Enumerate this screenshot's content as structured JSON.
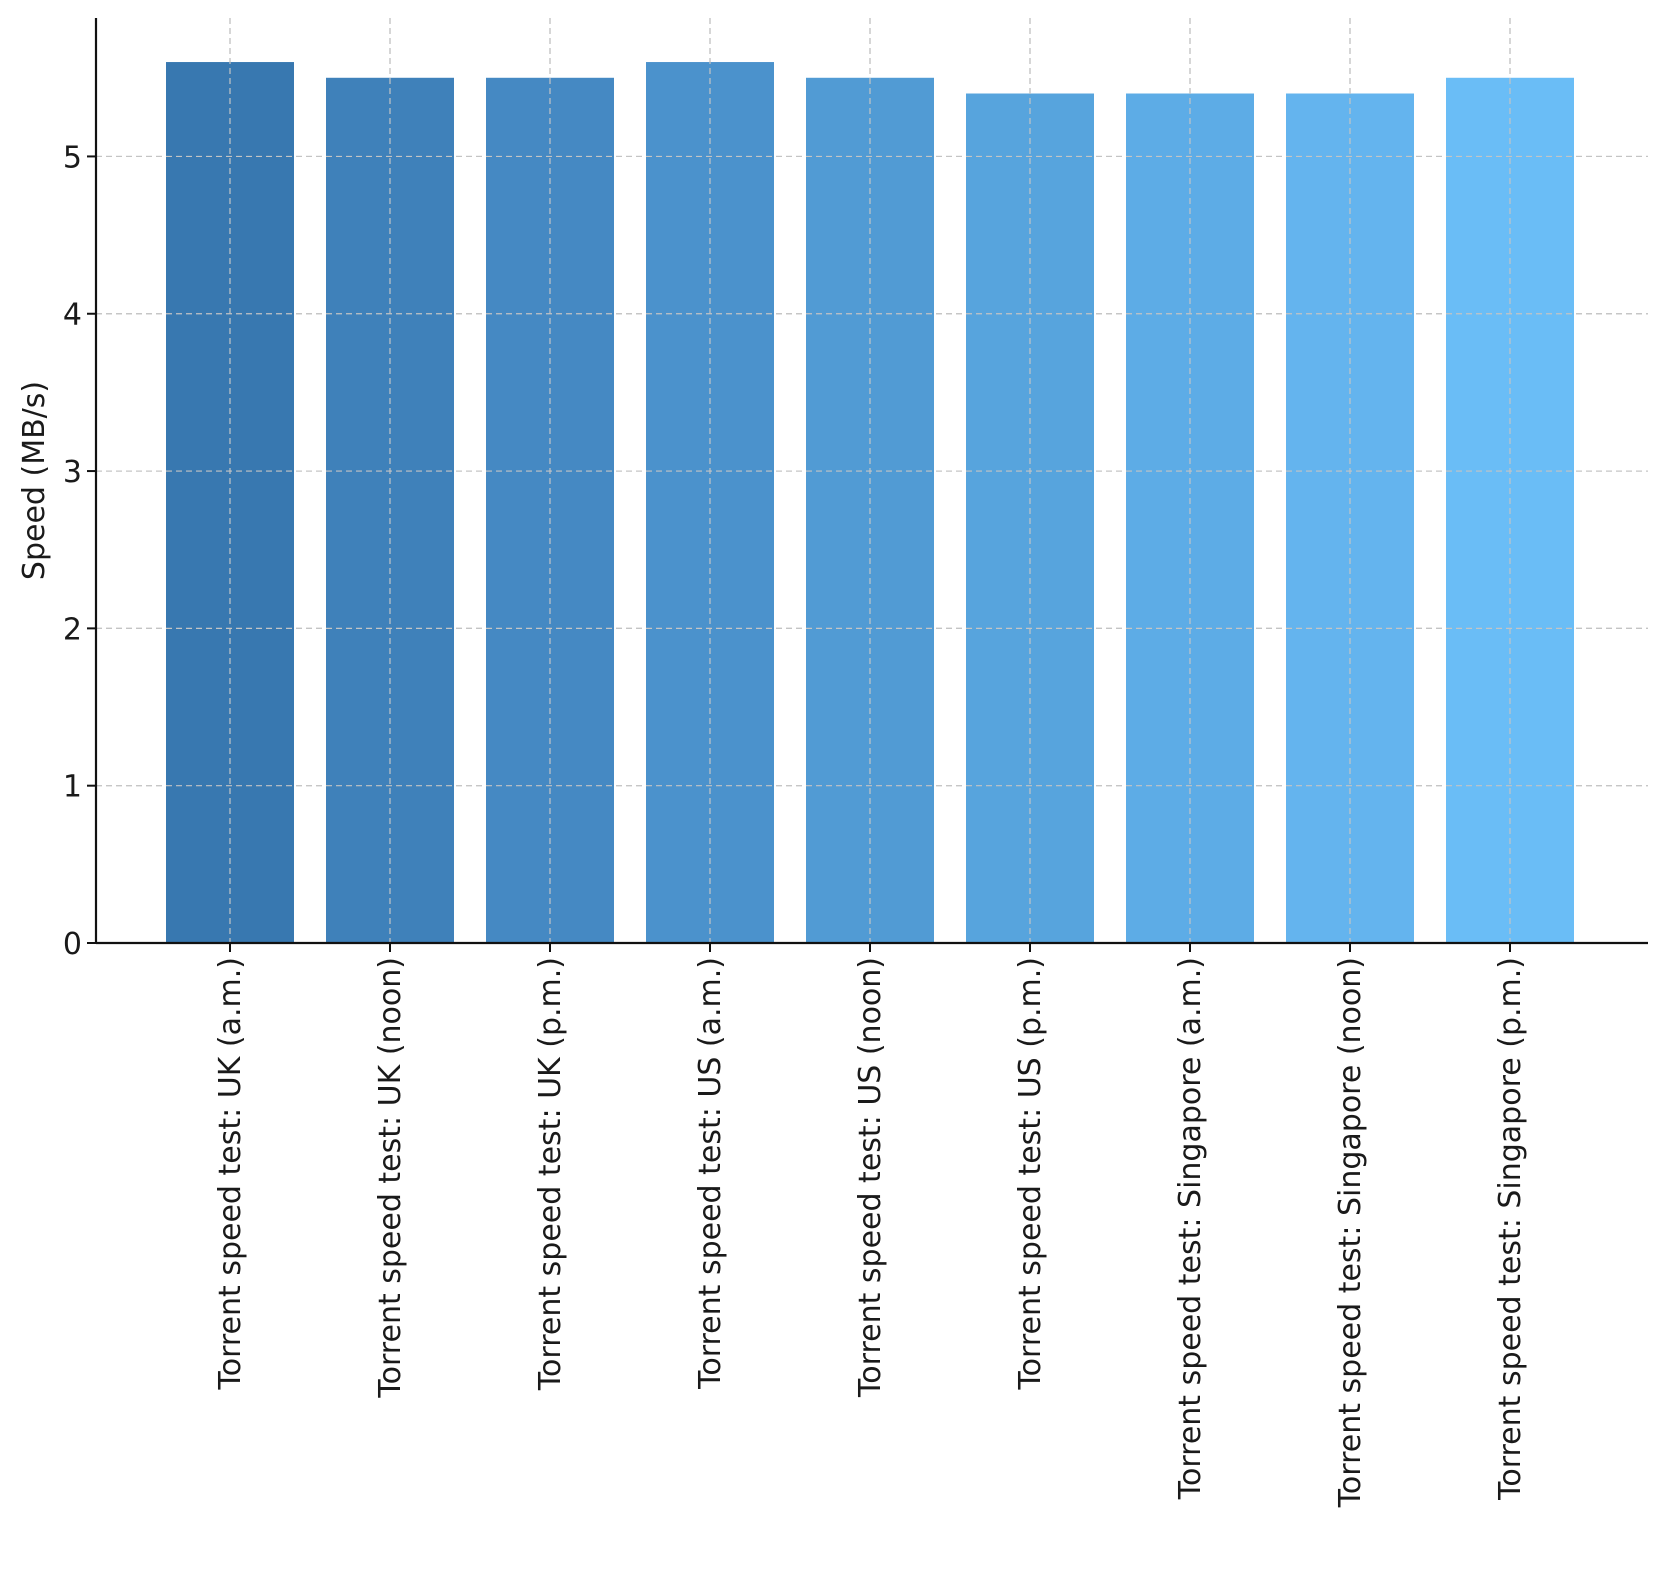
{
  "chart_data": {
    "type": "bar",
    "title": "",
    "xlabel": "",
    "ylabel": "Speed (MB/s)",
    "ylim": [
      0,
      5.88
    ],
    "yticks": [
      0,
      1,
      2,
      3,
      4,
      5
    ],
    "grid": true,
    "categories": [
      "Torrent speed test: UK (a.m.)",
      "Torrent speed test: UK (noon)",
      "Torrent speed test: UK (p.m.)",
      "Torrent speed test: US (a.m.)",
      "Torrent speed test: US (noon)",
      "Torrent speed test: US (p.m.)",
      "Torrent speed test: Singapore (a.m.)",
      "Torrent speed test: Singapore (noon)",
      "Torrent speed test: Singapore (p.m.)"
    ],
    "values": [
      5.6,
      5.5,
      5.5,
      5.6,
      5.5,
      5.4,
      5.4,
      5.4,
      5.5
    ],
    "colors": [
      "#3878b0",
      "#3f81ba",
      "#4589c3",
      "#4b92cc",
      "#519bd4",
      "#57a4dd",
      "#5dace6",
      "#64b4ee",
      "#6abdf6"
    ]
  }
}
